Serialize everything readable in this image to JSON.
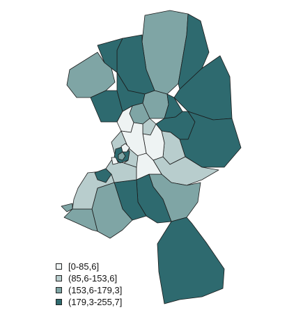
{
  "colors": {
    "c1": "#eef3f3",
    "c2": "#b8cdcd",
    "c3": "#7fa5a5",
    "c4": "#2e6a6f",
    "border": "#1a1a1a"
  },
  "legend": {
    "items": [
      {
        "label": "[0-85,6]",
        "color": "#eef3f3"
      },
      {
        "label": "(85,6-153,6]",
        "color": "#b8cdcd"
      },
      {
        "label": "(153,6-179,3]",
        "color": "#7fa5a5"
      },
      {
        "label": "(179,3-255,7]",
        "color": "#2e6a6f"
      }
    ]
  }
}
